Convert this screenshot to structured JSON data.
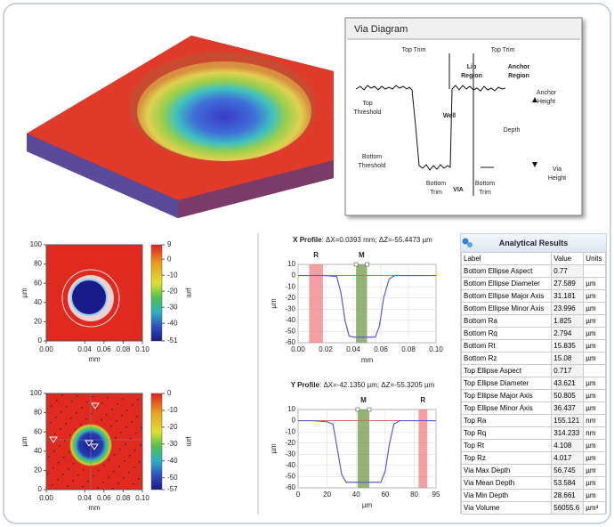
{
  "via_diagram": {
    "title": "Via Diagram",
    "labels": [
      {
        "lines": [
          "Top Trim"
        ]
      },
      {
        "lines": [
          "Top Trim"
        ]
      },
      {
        "lines": [
          "Lip",
          "Region"
        ]
      },
      {
        "lines": [
          "Anchor",
          "Region"
        ]
      },
      {
        "lines": [
          "Top",
          "Threshold"
        ]
      },
      {
        "lines": [
          "Well"
        ]
      },
      {
        "lines": [
          "Depth"
        ]
      },
      {
        "lines": [
          "Anchor",
          "Height"
        ]
      },
      {
        "lines": [
          "Bottom",
          "Threshold"
        ]
      },
      {
        "lines": [
          "Bottom",
          "Trim"
        ]
      },
      {
        "lines": [
          "VIA"
        ]
      },
      {
        "lines": [
          "Bottom",
          "Trim"
        ]
      },
      {
        "lines": [
          "Via",
          "Height"
        ]
      }
    ]
  },
  "maps": [
    {
      "x_label": "mm",
      "y_label": "µm",
      "colorbar_label": "µm",
      "xlim": [
        0,
        0.1
      ],
      "ylim": [
        0,
        100
      ],
      "xticks": [
        {
          "value": 0,
          "label": "0.00"
        },
        {
          "value": 0.04,
          "label": "0.04"
        },
        {
          "value": 0.06,
          "label": "0.06"
        },
        {
          "value": 0.08,
          "label": "0.08"
        },
        {
          "value": 0.1,
          "label": "0.10"
        }
      ],
      "yticks": [
        0,
        20,
        40,
        60,
        80,
        100
      ],
      "clim": [
        -51,
        9
      ],
      "cticks": [
        9,
        0,
        -10,
        -20,
        -30,
        -40,
        -51
      ]
    },
    {
      "x_label": "mm",
      "y_label": "µm",
      "colorbar_label": "µm",
      "xlim": [
        0,
        0.1
      ],
      "ylim": [
        0,
        100
      ],
      "xticks": [
        {
          "value": 0,
          "label": "0.00"
        },
        {
          "value": 0.04,
          "label": "0.04"
        },
        {
          "value": 0.06,
          "label": "0.06"
        },
        {
          "value": 0.08,
          "label": "0.08"
        },
        {
          "value": 0.1,
          "label": "0.10"
        }
      ],
      "yticks": [
        0,
        20,
        40,
        60,
        80,
        100
      ],
      "clim": [
        -57,
        0
      ],
      "cticks": [
        0,
        -10,
        -20,
        -30,
        -40,
        -50,
        -57
      ]
    }
  ],
  "profiles": [
    {
      "type": "line",
      "title_label": "X Profile",
      "title_text": ": ΔX=0.0393 mm; ΔZ=-55.4473 µm",
      "x_label": "mm",
      "y_label": "µm",
      "xlim": [
        0,
        0.1
      ],
      "ylim": [
        -60,
        10
      ],
      "xticks": [
        {
          "value": 0,
          "label": "0.00"
        },
        {
          "value": 0.02,
          "label": "0.02"
        },
        {
          "value": 0.04,
          "label": "0.04"
        },
        {
          "value": 0.06,
          "label": "0.06"
        },
        {
          "value": 0.08,
          "label": "0.08"
        },
        {
          "value": 0.1,
          "label": "0.10"
        }
      ],
      "yticks": [
        10,
        0,
        -10,
        -20,
        -30,
        -40,
        -50,
        -60
      ],
      "x": [
        0,
        0.01,
        0.02,
        0.028,
        0.031,
        0.034,
        0.037,
        0.04,
        0.05,
        0.056,
        0.059,
        0.062,
        0.066,
        0.07,
        0.08,
        0.09,
        0.1
      ],
      "y": [
        0,
        0,
        0,
        -1,
        -15,
        -40,
        -54,
        -55,
        -55,
        -55,
        -45,
        -20,
        -3,
        0,
        0,
        0,
        0
      ],
      "color": "#5b5bd6",
      "cursors": [
        {
          "name": "R",
          "range": [
            0.008,
            0.018
          ],
          "color": "#f08080",
          "label_color": "#d42020"
        },
        {
          "name": "M",
          "range": [
            0.042,
            0.05
          ],
          "color": "#6f9a4a",
          "label_color": "#3c8a2a"
        }
      ]
    },
    {
      "type": "line",
      "title_label": "Y Profile",
      "title_text": ": ΔX=-42.1350 µm; ΔZ=-55.3205 µm",
      "x_label": "µm",
      "y_label": "µm",
      "xlim": [
        0,
        95
      ],
      "ylim": [
        -60,
        10
      ],
      "xticks": [
        0,
        20,
        40,
        60,
        80,
        95
      ],
      "yticks": [
        10,
        0,
        -10,
        -20,
        -30,
        -40,
        -50,
        -60
      ],
      "x": [
        0,
        5,
        10,
        20,
        24,
        27,
        30,
        33,
        40,
        50,
        57,
        60,
        63,
        66,
        70,
        80,
        90,
        95
      ],
      "y": [
        0,
        0,
        0,
        -1,
        -3,
        -25,
        -48,
        -55,
        -55,
        -55,
        -55,
        -45,
        -20,
        -3,
        0,
        0,
        0,
        0
      ],
      "color": "#5b5bd6",
      "cursors": [
        {
          "name": "M",
          "range": [
            41,
            49
          ],
          "color": "#6f9a4a",
          "label_color": "#3c8a2a"
        },
        {
          "name": "R",
          "range": [
            83,
            89
          ],
          "color": "#f08080",
          "label_color": "#d42020"
        }
      ]
    }
  ],
  "results": {
    "title": "Analytical Results",
    "columns": [
      "Label",
      "Value",
      "Units"
    ],
    "rows": [
      [
        "Bottom Ellipse Aspect",
        "0.77",
        ""
      ],
      [
        "Bottom Ellipse Diameter",
        "27.589",
        "µm"
      ],
      [
        "Bottom Ellipse Major Axis",
        "31.181",
        "µm"
      ],
      [
        "Bottom Ellipse Minor Axis",
        "23.996",
        "µm"
      ],
      [
        "Bottom Ra",
        "1.825",
        "µm"
      ],
      [
        "Bottom Rq",
        "2.794",
        "µm"
      ],
      [
        "Bottom Rt",
        "15.835",
        "µm"
      ],
      [
        "Bottom Rz",
        "15.08",
        "µm"
      ],
      [
        "Top Ellipse Aspect",
        "0.717",
        ""
      ],
      [
        "Top Ellipse Diameter",
        "43.621",
        "µm"
      ],
      [
        "Top Ellipse Major Axis",
        "50.805",
        "µm"
      ],
      [
        "Top Ellipse Minor Axis",
        "36.437",
        "µm"
      ],
      [
        "Top Ra",
        "155.121",
        "nm"
      ],
      [
        "Top Rq",
        "314.233",
        "nm"
      ],
      [
        "Top Rt",
        "4.108",
        "µm"
      ],
      [
        "Top Rz",
        "4.017",
        "µm"
      ],
      [
        "Via Max Depth",
        "56.745",
        "µm"
      ],
      [
        "Via Mean Depth",
        "53.584",
        "µm"
      ],
      [
        "Via Min Depth",
        "28.661",
        "µm"
      ],
      [
        "Via Volume",
        "56055.6",
        "µm³"
      ]
    ]
  }
}
